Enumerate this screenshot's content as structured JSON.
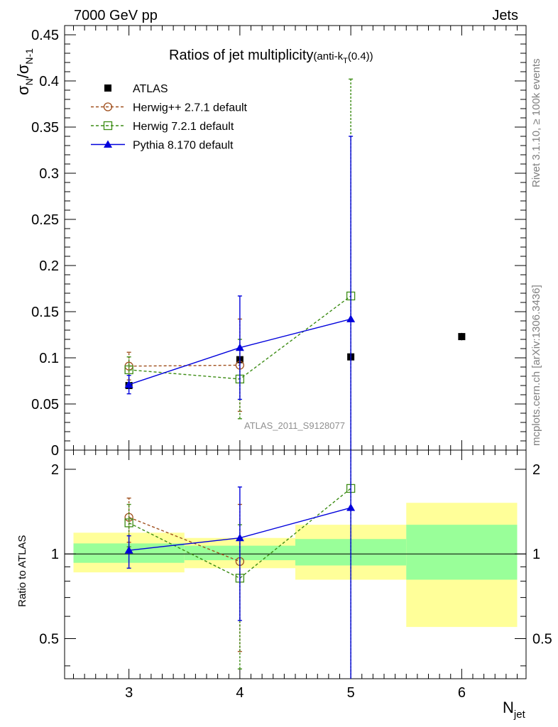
{
  "header": {
    "left": "7000 GeV pp",
    "right": "Jets"
  },
  "side_labels": {
    "rivet": "Rivet 3.1.10, ≥ 100k events",
    "mcplots": "mcplots.cern.ch [arXiv:1306.3436]"
  },
  "chart_data": [
    {
      "type": "scatter",
      "title_main": "Ratios of jet multiplicity",
      "title_sub": "(anti-k",
      "title_sub_index": "T",
      "title_sub_tail": "(0.4))",
      "ylabel_sigma": "σ",
      "ylabel_sub1": "N",
      "ylabel_slash": "/σ",
      "ylabel_sub2": "N-1",
      "xlim": [
        2.42,
        6.58
      ],
      "ylim": [
        0,
        0.46
      ],
      "yticks": [
        0,
        0.05,
        0.1,
        0.15,
        0.2,
        0.25,
        0.3,
        0.35,
        0.4,
        0.45
      ],
      "ytick_labels": [
        "0",
        "0.05",
        "0.1",
        "0.15",
        "0.2",
        "0.25",
        "0.3",
        "0.35",
        "0.4",
        "0.45"
      ],
      "watermark": "ATLAS_2011_S9128077",
      "legend_position": "top-left",
      "series": [
        {
          "name": "ATLAS",
          "color": "#000000",
          "marker": "filled-square",
          "x": [
            3,
            4,
            5,
            6
          ],
          "y": [
            0.07,
            0.098,
            0.101,
            0.123
          ],
          "yerr": [
            0.003,
            0.003,
            0.004,
            0.004
          ]
        },
        {
          "name": "Herwig++ 2.7.1 default",
          "color": "#a0501e",
          "marker": "open-circle",
          "dash": "4,3",
          "x": [
            3,
            4
          ],
          "y": [
            0.091,
            0.092
          ],
          "ylo": [
            0.076,
            0.042
          ],
          "yhi": [
            0.106,
            0.142
          ]
        },
        {
          "name": "Herwig 7.2.1 default",
          "color": "#3c8c14",
          "marker": "open-square",
          "dash": "4,3",
          "x": [
            3,
            4,
            5
          ],
          "y": [
            0.087,
            0.077,
            0.167
          ],
          "ylo": [
            0.073,
            0.034,
            0.0
          ],
          "yhi": [
            0.101,
            0.12,
            0.402
          ]
        },
        {
          "name": "Pythia 8.170 default",
          "color": "#0000dc",
          "marker": "filled-triangle",
          "x": [
            3,
            4,
            5
          ],
          "y": [
            0.071,
            0.111,
            0.142
          ],
          "ylo": [
            0.061,
            0.055,
            0.0
          ],
          "yhi": [
            0.081,
            0.167,
            0.34
          ]
        }
      ]
    },
    {
      "type": "scatter",
      "ylabel": "Ratio to ATLAS",
      "xlabel_main": "N",
      "xlabel_sub": "jet",
      "xlim": [
        2.42,
        6.58
      ],
      "ylim": [
        0.36,
        2.34
      ],
      "ylog": true,
      "yticks": [
        0.5,
        1,
        2
      ],
      "ytick_labels": [
        "0.5",
        "1",
        "2"
      ],
      "xticks": [
        3,
        4,
        5,
        6
      ],
      "xtick_labels": [
        "3",
        "4",
        "5",
        "6"
      ],
      "bands": [
        {
          "x0": 2.5,
          "x1": 3.5,
          "yellow": [
            0.86,
            1.19
          ],
          "green": [
            0.93,
            1.09
          ]
        },
        {
          "x0": 3.5,
          "x1": 4.5,
          "yellow": [
            0.89,
            1.14
          ],
          "green": [
            0.95,
            1.07
          ]
        },
        {
          "x0": 4.5,
          "x1": 5.5,
          "yellow": [
            0.81,
            1.27
          ],
          "green": [
            0.91,
            1.13
          ]
        },
        {
          "x0": 5.5,
          "x1": 6.5,
          "yellow": [
            0.55,
            1.52
          ],
          "green": [
            0.81,
            1.27
          ]
        }
      ],
      "series": [
        {
          "name": "Herwig++ 2.7.1 default",
          "color": "#a0501e",
          "marker": "open-circle",
          "dash": "4,3",
          "x": [
            3,
            4
          ],
          "y": [
            1.35,
            0.94
          ],
          "ylo": [
            1.1,
            0.45
          ],
          "yhi": [
            1.58,
            1.5
          ]
        },
        {
          "name": "Herwig 7.2.1 default",
          "color": "#3c8c14",
          "marker": "open-square",
          "dash": "4,3",
          "x": [
            3,
            4,
            5
          ],
          "y": [
            1.29,
            0.82,
            1.71
          ],
          "ylo": [
            1.06,
            0.39,
            0.3
          ],
          "yhi": [
            1.5,
            1.27,
            2.4
          ]
        },
        {
          "name": "Pythia 8.170 default",
          "color": "#0000dc",
          "marker": "filled-triangle",
          "x": [
            3,
            4,
            5
          ],
          "y": [
            1.03,
            1.14,
            1.46
          ],
          "ylo": [
            0.89,
            0.58,
            0.3
          ],
          "yhi": [
            1.16,
            1.73,
            2.4
          ]
        }
      ]
    }
  ]
}
